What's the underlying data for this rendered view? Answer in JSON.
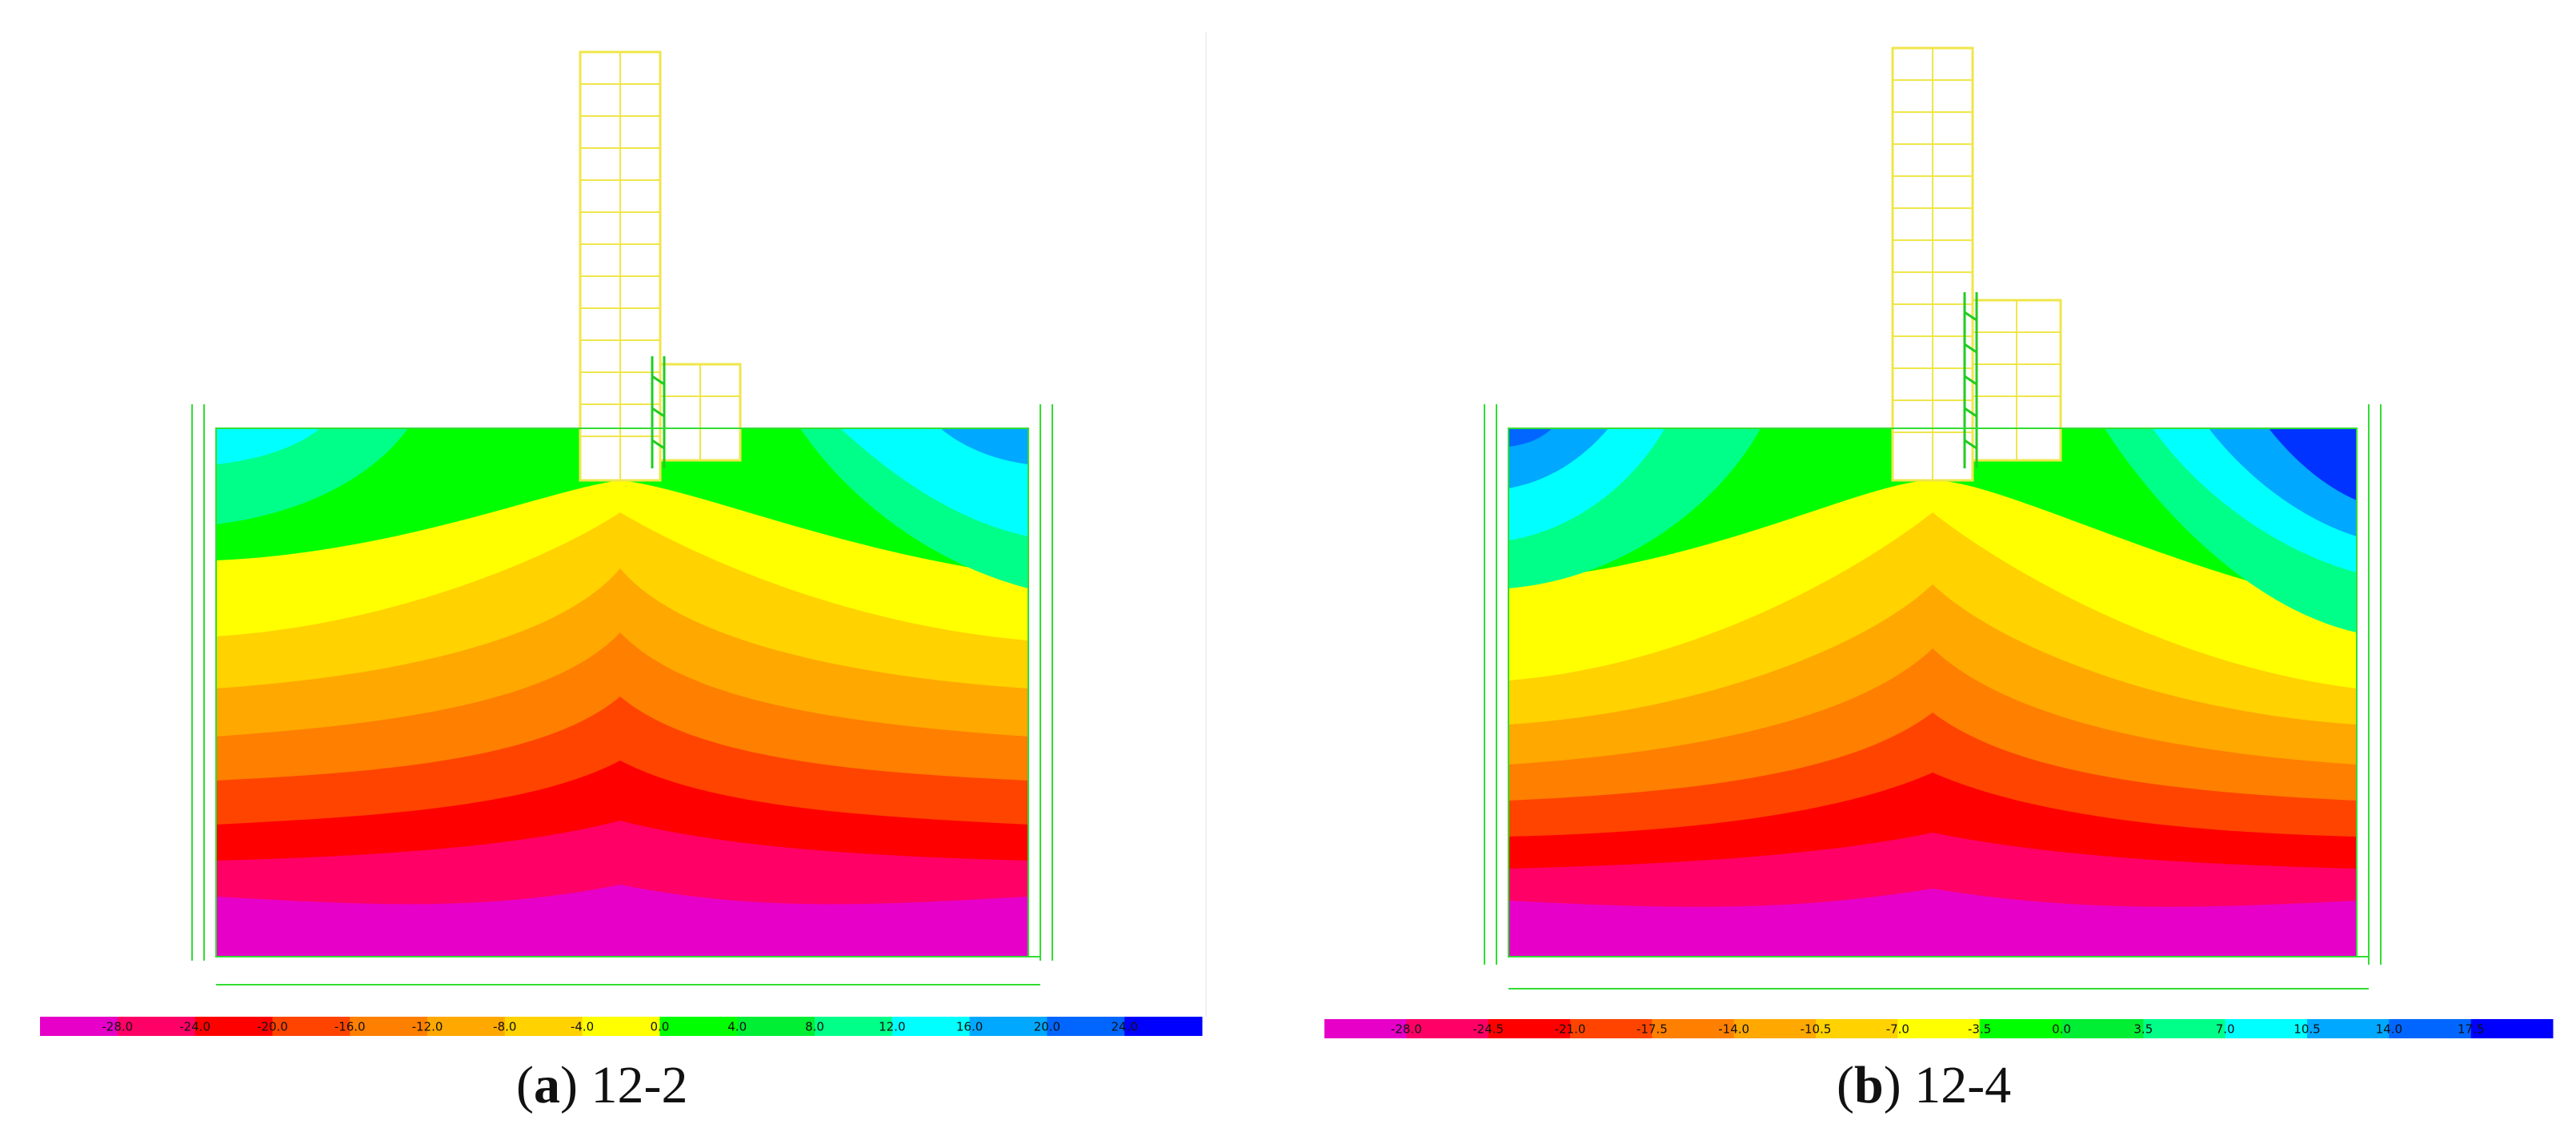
{
  "figure": {
    "panels": [
      {
        "id": "a",
        "caption_letter": "a",
        "caption_text": "12-2",
        "colorbar": {
          "colors": [
            "#e600c8",
            "#ff0066",
            "#ff0000",
            "#ff4400",
            "#ff7f00",
            "#ffa800",
            "#ffd200",
            "#ffff00",
            "#00ff00",
            "#00ee33",
            "#00ff88",
            "#00ffff",
            "#00a8ff",
            "#0066ff",
            "#0000ff"
          ],
          "labels": [
            "-28.0",
            "-24.0",
            "-20.0",
            "-16.0",
            "-12.0",
            "-8.0",
            "-4.0",
            "0.0",
            "4.0",
            "8.0",
            "12.0",
            "16.0",
            "20.0",
            "24.0"
          ]
        }
      },
      {
        "id": "b",
        "caption_letter": "b",
        "caption_text": "12-4",
        "colorbar": {
          "colors": [
            "#e600c8",
            "#ff0066",
            "#ff0000",
            "#ff4400",
            "#ff7f00",
            "#ffa800",
            "#ffd200",
            "#ffff00",
            "#00ff00",
            "#00ee33",
            "#00ff88",
            "#00ffff",
            "#00a8ff",
            "#0066ff",
            "#0000ff"
          ],
          "labels": [
            "-28.0",
            "-24.5",
            "-21.0",
            "-17.5",
            "-14.0",
            "-10.5",
            "-7.0",
            "-3.5",
            "0.0",
            "3.5",
            "7.0",
            "10.5",
            "14.0",
            "17.5"
          ]
        }
      }
    ]
  }
}
